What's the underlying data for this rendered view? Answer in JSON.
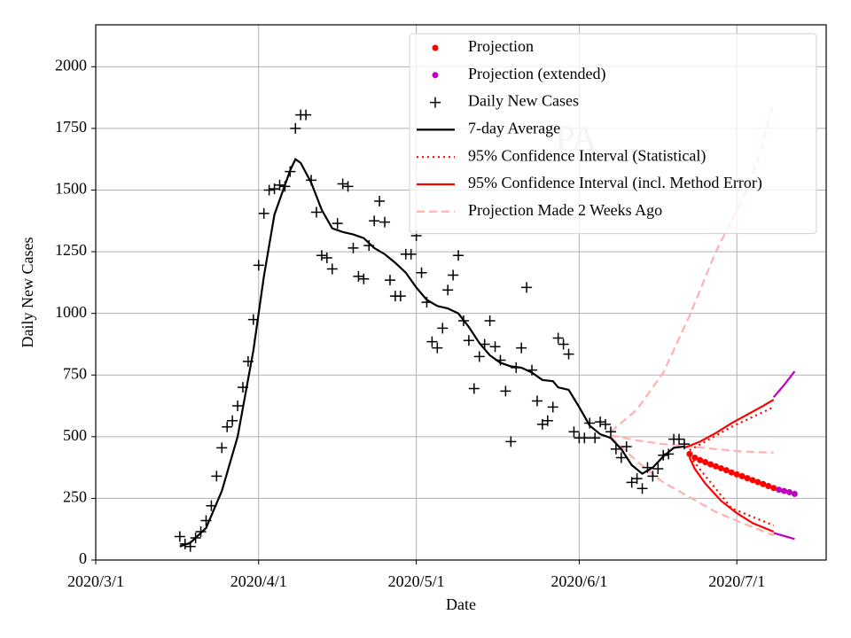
{
  "chart_data": {
    "type": "line",
    "annotation": "PA",
    "xlabel": "Date",
    "ylabel": "Daily New Cases",
    "xlim": [
      "2020-03-01",
      "2020-07-18"
    ],
    "xticks": [
      {
        "value": "2020-03-01",
        "label": "2020/3/1"
      },
      {
        "value": "2020-04-01",
        "label": "2020/4/1"
      },
      {
        "value": "2020-05-01",
        "label": "2020/5/1"
      },
      {
        "value": "2020-06-01",
        "label": "2020/6/1"
      },
      {
        "value": "2020-07-01",
        "label": "2020/7/1"
      }
    ],
    "ylim": [
      0,
      2170
    ],
    "yticks": [
      0,
      250,
      500,
      750,
      1000,
      1250,
      1500,
      1750,
      2000
    ],
    "grid": true,
    "legend": "upper right",
    "series": [
      {
        "name": "Projection",
        "color": "#ff0000",
        "marker": "o",
        "x": [
          "2020-06-22",
          "2020-06-23",
          "2020-06-24",
          "2020-06-25",
          "2020-06-26",
          "2020-06-27",
          "2020-06-28",
          "2020-06-29",
          "2020-06-30",
          "2020-07-01",
          "2020-07-02",
          "2020-07-03",
          "2020-07-04",
          "2020-07-05",
          "2020-07-06",
          "2020-07-07",
          "2020-07-08"
        ],
        "values": [
          430,
          415,
          405,
          397,
          388,
          380,
          372,
          364,
          355,
          347,
          340,
          332,
          324,
          316,
          308,
          300,
          292
        ]
      },
      {
        "name": "Projection (extended)",
        "color": "#bf00bf",
        "marker": "o",
        "x": [
          "2020-07-09",
          "2020-07-10",
          "2020-07-11",
          "2020-07-12"
        ],
        "values": [
          285,
          280,
          275,
          268
        ],
        "upper": {
          "x": [
            "2020-07-08",
            "2020-07-10",
            "2020-07-12"
          ],
          "values": [
            660,
            710,
            765
          ]
        },
        "lower": {
          "x": [
            "2020-07-08",
            "2020-07-12"
          ],
          "values": [
            110,
            85
          ]
        }
      },
      {
        "name": "Daily New Cases",
        "color": "#000000",
        "marker": "+",
        "x": [
          "2020-03-17",
          "2020-03-18",
          "2020-03-19",
          "2020-03-20",
          "2020-03-21",
          "2020-03-22",
          "2020-03-23",
          "2020-03-24",
          "2020-03-25",
          "2020-03-26",
          "2020-03-27",
          "2020-03-28",
          "2020-03-29",
          "2020-03-30",
          "2020-03-31",
          "2020-04-01",
          "2020-04-02",
          "2020-04-03",
          "2020-04-04",
          "2020-04-05",
          "2020-04-06",
          "2020-04-07",
          "2020-04-08",
          "2020-04-09",
          "2020-04-10",
          "2020-04-11",
          "2020-04-12",
          "2020-04-13",
          "2020-04-14",
          "2020-04-15",
          "2020-04-16",
          "2020-04-17",
          "2020-04-18",
          "2020-04-19",
          "2020-04-20",
          "2020-04-21",
          "2020-04-22",
          "2020-04-23",
          "2020-04-24",
          "2020-04-25",
          "2020-04-26",
          "2020-04-27",
          "2020-04-28",
          "2020-04-29",
          "2020-04-30",
          "2020-05-01",
          "2020-05-02",
          "2020-05-03",
          "2020-05-04",
          "2020-05-05",
          "2020-05-06",
          "2020-05-07",
          "2020-05-08",
          "2020-05-09",
          "2020-05-10",
          "2020-05-11",
          "2020-05-12",
          "2020-05-13",
          "2020-05-14",
          "2020-05-15",
          "2020-05-16",
          "2020-05-17",
          "2020-05-18",
          "2020-05-19",
          "2020-05-20",
          "2020-05-21",
          "2020-05-22",
          "2020-05-23",
          "2020-05-24",
          "2020-05-25",
          "2020-05-26",
          "2020-05-27",
          "2020-05-28",
          "2020-05-29",
          "2020-05-30",
          "2020-05-31",
          "2020-06-01",
          "2020-06-02",
          "2020-06-03",
          "2020-06-04",
          "2020-06-05",
          "2020-06-06",
          "2020-06-07",
          "2020-06-08",
          "2020-06-09",
          "2020-06-10",
          "2020-06-11",
          "2020-06-12",
          "2020-06-13",
          "2020-06-14",
          "2020-06-15",
          "2020-06-16",
          "2020-06-17",
          "2020-06-18",
          "2020-06-19",
          "2020-06-20",
          "2020-06-21"
        ],
        "values": [
          95,
          65,
          55,
          90,
          115,
          160,
          220,
          340,
          455,
          540,
          565,
          625,
          700,
          805,
          975,
          1195,
          1405,
          1500,
          1505,
          1520,
          1515,
          1575,
          1750,
          1805,
          1805,
          1540,
          1410,
          1235,
          1225,
          1180,
          1365,
          1525,
          1515,
          1265,
          1150,
          1140,
          1275,
          1375,
          1455,
          1370,
          1135,
          1070,
          1070,
          1240,
          1240,
          1315,
          1165,
          1045,
          885,
          860,
          940,
          1095,
          1155,
          1235,
          970,
          890,
          695,
          825,
          875,
          970,
          865,
          810,
          685,
          480,
          780,
          860,
          1105,
          770,
          645,
          550,
          565,
          620,
          900,
          875,
          835,
          520,
          495,
          495,
          555,
          495,
          560,
          550,
          520,
          450,
          415,
          460,
          315,
          330,
          290,
          375,
          340,
          370,
          425,
          430,
          490,
          490,
          470
        ]
      },
      {
        "name": "7-day Average",
        "color": "#000000",
        "linestyle": "solid",
        "x": [
          "2020-03-17",
          "2020-03-19",
          "2020-03-22",
          "2020-03-25",
          "2020-03-28",
          "2020-03-31",
          "2020-04-02",
          "2020-04-04",
          "2020-04-06",
          "2020-04-07",
          "2020-04-08",
          "2020-04-09",
          "2020-04-11",
          "2020-04-13",
          "2020-04-15",
          "2020-04-17",
          "2020-04-19",
          "2020-04-21",
          "2020-04-23",
          "2020-04-25",
          "2020-04-27",
          "2020-04-29",
          "2020-05-01",
          "2020-05-03",
          "2020-05-05",
          "2020-05-07",
          "2020-05-09",
          "2020-05-11",
          "2020-05-13",
          "2020-05-15",
          "2020-05-17",
          "2020-05-19",
          "2020-05-21",
          "2020-05-23",
          "2020-05-25",
          "2020-05-27",
          "2020-05-28",
          "2020-05-30",
          "2020-06-01",
          "2020-06-03",
          "2020-06-05",
          "2020-06-07",
          "2020-06-09",
          "2020-06-11",
          "2020-06-13",
          "2020-06-15",
          "2020-06-17",
          "2020-06-19",
          "2020-06-21"
        ],
        "values": [
          55,
          70,
          130,
          280,
          500,
          850,
          1150,
          1400,
          1520,
          1580,
          1625,
          1610,
          1530,
          1420,
          1345,
          1330,
          1320,
          1305,
          1265,
          1240,
          1205,
          1165,
          1105,
          1055,
          1030,
          1020,
          1000,
          945,
          880,
          830,
          800,
          785,
          780,
          760,
          730,
          725,
          700,
          690,
          620,
          545,
          510,
          495,
          450,
          385,
          350,
          375,
          420,
          455,
          460
        ]
      },
      {
        "name": "95% Confidence Interval (Statistical)",
        "color": "#ff0000",
        "linestyle": "dotted",
        "upper": {
          "x": [
            "2020-06-22",
            "2020-06-30",
            "2020-07-08"
          ],
          "values": [
            445,
            540,
            620
          ]
        },
        "lower": {
          "x": [
            "2020-06-22",
            "2020-06-30",
            "2020-07-08"
          ],
          "values": [
            420,
            210,
            140
          ]
        }
      },
      {
        "name": "95% Confidence Interval (incl. Method Error)",
        "color": "#ff0000",
        "linestyle": "solid",
        "upper": {
          "x": [
            "2020-06-21",
            "2020-06-24",
            "2020-06-27",
            "2020-06-30",
            "2020-07-03",
            "2020-07-06",
            "2020-07-08"
          ],
          "values": [
            455,
            480,
            515,
            555,
            590,
            625,
            650
          ]
        },
        "lower": {
          "x": [
            "2020-06-22",
            "2020-06-23",
            "2020-06-25",
            "2020-06-28",
            "2020-07-01",
            "2020-07-04",
            "2020-07-08"
          ],
          "values": [
            415,
            370,
            310,
            240,
            190,
            150,
            115
          ]
        }
      },
      {
        "name": "Projection Made 2 Weeks Ago",
        "color": "#ffb0b0",
        "linestyle": "dashed",
        "x": [
          "2020-06-07",
          "2020-06-12",
          "2020-06-17",
          "2020-06-22",
          "2020-06-27",
          "2020-07-02",
          "2020-07-08"
        ],
        "values": [
          505,
          485,
          470,
          460,
          450,
          440,
          435
        ],
        "upper": {
          "x": [
            "2020-06-07",
            "2020-06-12",
            "2020-06-17",
            "2020-06-22",
            "2020-06-27",
            "2020-07-02",
            "2020-07-05",
            "2020-07-08"
          ],
          "values": [
            520,
            610,
            760,
            990,
            1250,
            1460,
            1620,
            1855
          ]
        },
        "lower": {
          "x": [
            "2020-06-07",
            "2020-06-12",
            "2020-06-17",
            "2020-06-22",
            "2020-06-27",
            "2020-07-02",
            "2020-07-05",
            "2020-07-08"
          ],
          "values": [
            500,
            400,
            315,
            255,
            195,
            150,
            125,
            100
          ]
        }
      }
    ]
  }
}
